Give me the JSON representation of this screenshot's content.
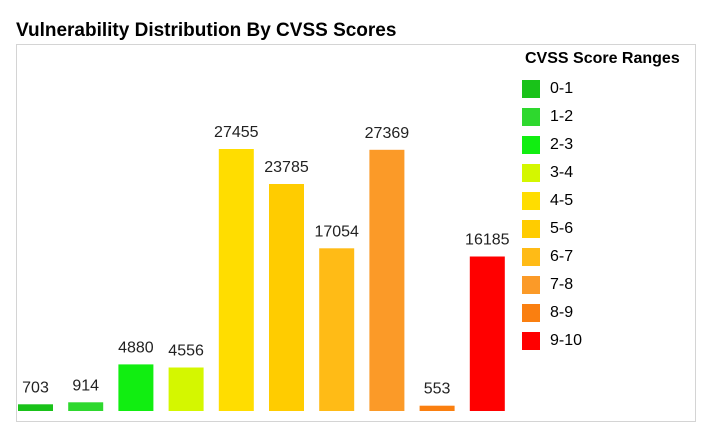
{
  "chart_data": {
    "type": "bar",
    "title": "Vulnerability Distribution By CVSS Scores",
    "legend_title": "CVSS Score Ranges",
    "legend_position": "right",
    "grid": false,
    "categories": [
      "0-1",
      "1-2",
      "2-3",
      "3-4",
      "4-5",
      "5-6",
      "6-7",
      "7-8",
      "8-9",
      "9-10"
    ],
    "values": [
      703,
      914,
      4880,
      4556,
      27455,
      23785,
      17054,
      27369,
      553,
      16185
    ],
    "colors": [
      "#19c219",
      "#2ed82e",
      "#11ee11",
      "#d4f700",
      "#ffdd00",
      "#ffcc00",
      "#ffbb16",
      "#fb9a28",
      "#fa7f10",
      "#ff0000"
    ],
    "ylim": [
      0,
      27455
    ]
  }
}
